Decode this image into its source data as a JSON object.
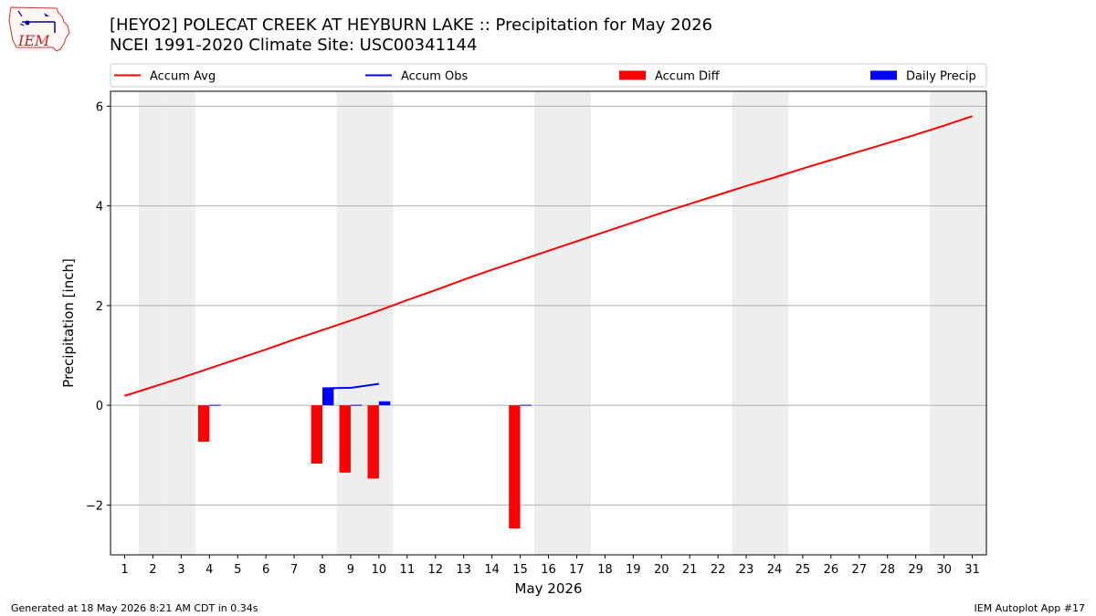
{
  "header": {
    "logo_text": "IEM",
    "title_line1": "[HEYO2] POLECAT CREEK  AT HEYBURN LAKE :: Precipitation for May 2026",
    "title_line2": "NCEI 1991-2020 Climate Site: USC00341144"
  },
  "footer": {
    "left": "Generated at 18 May 2026 8:21 AM CDT in 0.34s",
    "right": "IEM Autoplot App #17"
  },
  "colors": {
    "accum_avg": "#ff0000",
    "accum_obs": "#0000ff",
    "accum_diff": "#ff0000",
    "daily_precip": "#0000ff",
    "weekend_shade": "#eeeeee",
    "grid": "#b0b0b0"
  },
  "chart_data": {
    "type": "bar",
    "xlabel": "May 2026",
    "ylabel": "Precipitation [inch]",
    "xlim": [
      0.5,
      31.5
    ],
    "ylim": [
      -3.0,
      6.3
    ],
    "yticks": [
      -2,
      0,
      2,
      4,
      6
    ],
    "ytick_labels": [
      "−2",
      "0",
      "2",
      "4",
      "6"
    ],
    "xticks": [
      1,
      2,
      3,
      4,
      5,
      6,
      7,
      8,
      9,
      10,
      11,
      12,
      13,
      14,
      15,
      16,
      17,
      18,
      19,
      20,
      21,
      22,
      23,
      24,
      25,
      26,
      27,
      28,
      29,
      30,
      31
    ],
    "grid": "horizontal",
    "legend_position": "top",
    "weekend_days": [
      2,
      3,
      9,
      10,
      16,
      17,
      23,
      24,
      30,
      31
    ],
    "series": [
      {
        "name": "Accum Avg",
        "kind": "line",
        "x": [
          1,
          2,
          3,
          4,
          5,
          6,
          7,
          8,
          9,
          10,
          11,
          12,
          13,
          14,
          15,
          16,
          17,
          18,
          19,
          20,
          21,
          22,
          23,
          24,
          25,
          26,
          27,
          28,
          29,
          30,
          31
        ],
        "values": [
          0.19,
          0.37,
          0.55,
          0.74,
          0.93,
          1.12,
          1.32,
          1.51,
          1.7,
          1.9,
          2.11,
          2.31,
          2.52,
          2.72,
          2.91,
          3.1,
          3.29,
          3.48,
          3.67,
          3.86,
          4.04,
          4.22,
          4.4,
          4.57,
          4.75,
          4.92,
          5.09,
          5.26,
          5.43,
          5.61,
          5.8
        ]
      },
      {
        "name": "Accum Obs",
        "kind": "line",
        "x": [
          8,
          9,
          10
        ],
        "values": [
          0.34,
          0.35,
          0.43
        ]
      },
      {
        "name": "Accum Diff",
        "kind": "bar",
        "x": [
          4,
          8,
          9,
          10,
          15
        ],
        "values": [
          -0.73,
          -1.17,
          -1.35,
          -1.47,
          -2.47
        ]
      },
      {
        "name": "Daily Precip",
        "kind": "bar",
        "x": [
          4,
          8,
          9,
          10,
          15
        ],
        "values": [
          0.01,
          0.34,
          0.01,
          0.08,
          0.01
        ]
      }
    ]
  }
}
